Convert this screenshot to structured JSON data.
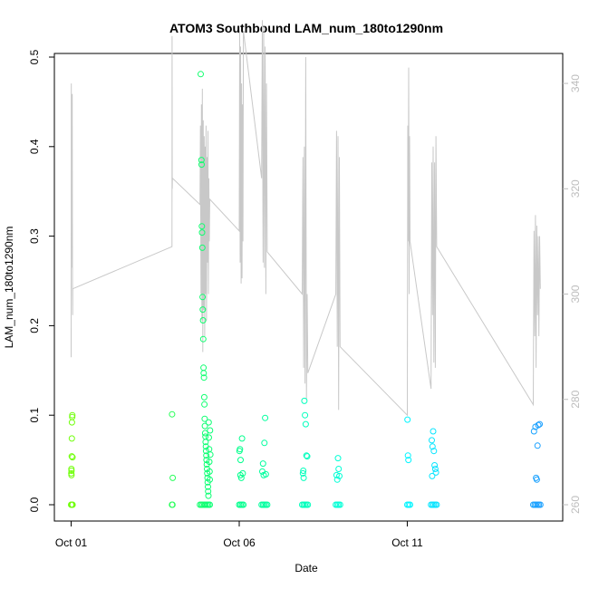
{
  "colors": {
    "background": "#ffffff",
    "axis": "#000000",
    "secondary_line": "#c8c8c8",
    "secondary_axis": "#bdbdbd",
    "point_gradient": [
      "#7fff00",
      "#00ff7f",
      "#00ffff",
      "#1e90ff"
    ]
  },
  "chart_data": {
    "type": "scatter",
    "title": "ATOM3 Southbound LAM_num_180to1290nm",
    "xlabel": "Date",
    "ylabel": "LAM_num_180to1290nm",
    "x_is_date": true,
    "xlim": [
      "2023-09-30T12:00",
      "2023-10-15T15:00"
    ],
    "ylim": [
      0,
      0.5
    ],
    "y_ticks": [
      0.0,
      0.1,
      0.2,
      0.3,
      0.4,
      0.5
    ],
    "y_tick_labels": [
      "0.0",
      "0.1",
      "0.2",
      "0.3",
      "0.4",
      "0.5"
    ],
    "x_ticks": [
      "2023-10-01T00:00",
      "2023-10-06T00:00",
      "2023-10-11T00:00"
    ],
    "x_tick_labels": [
      "Oct 01",
      "Oct 06",
      "Oct 11"
    ],
    "y2lim": [
      260,
      345
    ],
    "y2_ticks": [
      260,
      280,
      300,
      320,
      340
    ],
    "y2_tick_labels": [
      "260",
      "280",
      "300",
      "320",
      "340"
    ],
    "series": [
      {
        "kind": "points",
        "color_by_time": true,
        "points": [
          [
            "2023-10-01T00:00",
            0.0
          ],
          [
            "2023-10-01T00:20",
            0.0
          ],
          [
            "2023-10-01T00:40",
            0.0
          ],
          [
            "2023-10-01T01:00",
            0.0
          ],
          [
            "2023-10-01T00:05",
            0.035
          ],
          [
            "2023-10-01T00:10",
            0.04
          ],
          [
            "2023-10-01T00:15",
            0.038
          ],
          [
            "2023-10-01T00:25",
            0.054
          ],
          [
            "2023-10-01T00:30",
            0.074
          ],
          [
            "2023-10-01T00:35",
            0.092
          ],
          [
            "2023-10-01T00:45",
            0.098
          ],
          [
            "2023-10-01T00:50",
            0.1
          ],
          [
            "2023-10-01T00:12",
            0.033
          ],
          [
            "2023-10-01T00:55",
            0.053
          ],
          [
            "2023-10-04T00:00",
            0.0
          ],
          [
            "2023-10-04T00:20",
            0.0
          ],
          [
            "2023-10-04T00:05",
            0.101
          ],
          [
            "2023-10-04T00:30",
            0.03
          ],
          [
            "2023-10-04T20:00",
            0.0
          ],
          [
            "2023-10-04T21:00",
            0.0
          ],
          [
            "2023-10-04T22:00",
            0.0
          ],
          [
            "2023-10-04T23:00",
            0.0
          ],
          [
            "2023-10-05T00:00",
            0.0
          ],
          [
            "2023-10-05T01:00",
            0.0
          ],
          [
            "2023-10-05T02:00",
            0.0
          ],
          [
            "2023-10-05T03:00",
            0.0
          ],
          [
            "2023-10-04T20:30",
            0.481
          ],
          [
            "2023-10-04T21:00",
            0.385
          ],
          [
            "2023-10-04T21:10",
            0.38
          ],
          [
            "2023-10-04T21:20",
            0.311
          ],
          [
            "2023-10-04T21:30",
            0.304
          ],
          [
            "2023-10-04T21:40",
            0.287
          ],
          [
            "2023-10-04T21:50",
            0.232
          ],
          [
            "2023-10-04T22:00",
            0.218
          ],
          [
            "2023-10-04T22:10",
            0.206
          ],
          [
            "2023-10-04T22:20",
            0.185
          ],
          [
            "2023-10-04T22:30",
            0.153
          ],
          [
            "2023-10-04T22:40",
            0.147
          ],
          [
            "2023-10-04T22:50",
            0.142
          ],
          [
            "2023-10-04T23:00",
            0.12
          ],
          [
            "2023-10-04T23:10",
            0.112
          ],
          [
            "2023-10-04T23:20",
            0.096
          ],
          [
            "2023-10-04T23:30",
            0.088
          ],
          [
            "2023-10-04T23:40",
            0.08
          ],
          [
            "2023-10-04T23:50",
            0.076
          ],
          [
            "2023-10-05T00:00",
            0.07
          ],
          [
            "2023-10-05T00:10",
            0.065
          ],
          [
            "2023-10-05T00:20",
            0.06
          ],
          [
            "2023-10-05T00:30",
            0.055
          ],
          [
            "2023-10-05T00:40",
            0.05
          ],
          [
            "2023-10-05T00:50",
            0.045
          ],
          [
            "2023-10-05T01:00",
            0.04
          ],
          [
            "2023-10-05T01:10",
            0.035
          ],
          [
            "2023-10-05T01:20",
            0.03
          ],
          [
            "2023-10-05T01:30",
            0.025
          ],
          [
            "2023-10-05T01:40",
            0.02
          ],
          [
            "2023-10-05T01:50",
            0.015
          ],
          [
            "2023-10-05T02:00",
            0.01
          ],
          [
            "2023-10-05T02:10",
            0.092
          ],
          [
            "2023-10-05T02:20",
            0.075
          ],
          [
            "2023-10-05T02:30",
            0.062
          ],
          [
            "2023-10-05T02:40",
            0.048
          ],
          [
            "2023-10-05T02:50",
            0.037
          ],
          [
            "2023-10-05T03:00",
            0.028
          ],
          [
            "2023-10-05T03:10",
            0.083
          ],
          [
            "2023-10-05T03:20",
            0.056
          ],
          [
            "2023-10-06T00:00",
            0.0
          ],
          [
            "2023-10-06T01:00",
            0.0
          ],
          [
            "2023-10-06T02:00",
            0.0
          ],
          [
            "2023-10-06T03:00",
            0.0
          ],
          [
            "2023-10-06T00:10",
            0.06
          ],
          [
            "2023-10-06T00:30",
            0.062
          ],
          [
            "2023-10-06T01:00",
            0.05
          ],
          [
            "2023-10-06T02:00",
            0.074
          ],
          [
            "2023-10-06T02:30",
            0.035
          ],
          [
            "2023-10-06T01:30",
            0.03
          ],
          [
            "2023-10-06T00:50",
            0.033
          ],
          [
            "2023-10-06T16:00",
            0.0
          ],
          [
            "2023-10-06T17:00",
            0.0
          ],
          [
            "2023-10-06T18:00",
            0.0
          ],
          [
            "2023-10-06T19:00",
            0.0
          ],
          [
            "2023-10-06T20:00",
            0.0
          ],
          [
            "2023-10-06T16:30",
            0.037
          ],
          [
            "2023-10-06T17:00",
            0.046
          ],
          [
            "2023-10-06T17:30",
            0.033
          ],
          [
            "2023-10-06T18:00",
            0.069
          ],
          [
            "2023-10-06T18:30",
            0.097
          ],
          [
            "2023-10-06T19:00",
            0.034
          ],
          [
            "2023-10-07T21:00",
            0.0
          ],
          [
            "2023-10-07T22:00",
            0.0
          ],
          [
            "2023-10-07T23:00",
            0.0
          ],
          [
            "2023-10-08T00:00",
            0.0
          ],
          [
            "2023-10-08T01:00",
            0.0
          ],
          [
            "2023-10-07T21:30",
            0.035
          ],
          [
            "2023-10-07T22:00",
            0.03
          ],
          [
            "2023-10-07T22:30",
            0.116
          ],
          [
            "2023-10-07T23:00",
            0.1
          ],
          [
            "2023-10-07T23:30",
            0.09
          ],
          [
            "2023-10-08T00:00",
            0.055
          ],
          [
            "2023-10-08T00:30",
            0.054
          ],
          [
            "2023-10-07T21:45",
            0.038
          ],
          [
            "2023-10-08T21:00",
            0.0
          ],
          [
            "2023-10-08T22:00",
            0.0
          ],
          [
            "2023-10-08T23:00",
            0.0
          ],
          [
            "2023-10-09T00:00",
            0.0
          ],
          [
            "2023-10-08T21:30",
            0.033
          ],
          [
            "2023-10-08T22:00",
            0.028
          ],
          [
            "2023-10-08T22:30",
            0.052
          ],
          [
            "2023-10-08T23:00",
            0.04
          ],
          [
            "2023-10-08T23:30",
            0.032
          ],
          [
            "2023-10-11T00:00",
            0.0
          ],
          [
            "2023-10-11T01:00",
            0.0
          ],
          [
            "2023-10-11T02:00",
            0.0
          ],
          [
            "2023-10-11T00:10",
            0.095
          ],
          [
            "2023-10-11T00:30",
            0.055
          ],
          [
            "2023-10-11T00:50",
            0.05
          ],
          [
            "2023-10-11T17:00",
            0.0
          ],
          [
            "2023-10-11T18:00",
            0.0
          ],
          [
            "2023-10-11T19:00",
            0.0
          ],
          [
            "2023-10-11T20:00",
            0.0
          ],
          [
            "2023-10-11T21:00",
            0.0
          ],
          [
            "2023-10-11T17:30",
            0.072
          ],
          [
            "2023-10-11T18:00",
            0.065
          ],
          [
            "2023-10-11T18:30",
            0.082
          ],
          [
            "2023-10-11T19:00",
            0.06
          ],
          [
            "2023-10-11T19:30",
            0.044
          ],
          [
            "2023-10-11T20:00",
            0.04
          ],
          [
            "2023-10-11T20:30",
            0.036
          ],
          [
            "2023-10-11T17:45",
            0.032
          ],
          [
            "2023-10-14T18:00",
            0.0
          ],
          [
            "2023-10-14T19:00",
            0.0
          ],
          [
            "2023-10-14T20:00",
            0.0
          ],
          [
            "2023-10-14T21:00",
            0.0
          ],
          [
            "2023-10-14T22:00",
            0.0
          ],
          [
            "2023-10-14T23:00",
            0.0
          ],
          [
            "2023-10-14T18:30",
            0.082
          ],
          [
            "2023-10-14T19:30",
            0.087
          ],
          [
            "2023-10-14T21:30",
            0.089
          ],
          [
            "2023-10-14T22:30",
            0.09
          ],
          [
            "2023-10-14T21:00",
            0.066
          ],
          [
            "2023-10-14T20:00",
            0.03
          ],
          [
            "2023-10-14T20:30",
            0.028
          ]
        ]
      },
      {
        "kind": "line",
        "axis": "right",
        "points": [
          [
            "2023-10-01T00:00",
            288
          ],
          [
            "2023-10-01T00:05",
            340
          ],
          [
            "2023-10-01T00:15",
            305
          ],
          [
            "2023-10-01T00:25",
            338
          ],
          [
            "2023-10-01T00:35",
            311
          ],
          [
            "2023-10-01T00:45",
            338
          ],
          [
            "2023-10-01T00:55",
            302
          ],
          [
            "2023-10-01T01:05",
            296
          ],
          [
            "2023-10-01T01:10",
            301
          ],
          [
            "2023-10-04T00:00",
            309
          ],
          [
            "2023-10-04T00:05",
            349
          ],
          [
            "2023-10-04T00:10",
            320
          ],
          [
            "2023-10-04T00:15",
            321
          ],
          [
            "2023-10-04T00:20",
            322
          ],
          [
            "2023-10-04T20:00",
            317
          ],
          [
            "2023-10-04T20:20",
            332
          ],
          [
            "2023-10-04T20:40",
            300
          ],
          [
            "2023-10-04T21:00",
            336
          ],
          [
            "2023-10-04T21:20",
            295
          ],
          [
            "2023-10-04T21:40",
            339
          ],
          [
            "2023-10-04T22:00",
            289
          ],
          [
            "2023-10-04T22:20",
            333
          ],
          [
            "2023-10-04T22:40",
            297
          ],
          [
            "2023-10-04T23:00",
            330
          ],
          [
            "2023-10-04T23:20",
            292
          ],
          [
            "2023-10-04T23:40",
            328
          ],
          [
            "2023-10-05T00:00",
            300
          ],
          [
            "2023-10-05T00:20",
            332
          ],
          [
            "2023-10-05T00:40",
            295
          ],
          [
            "2023-10-05T01:00",
            326
          ],
          [
            "2023-10-05T01:20",
            306
          ],
          [
            "2023-10-05T01:40",
            331
          ],
          [
            "2023-10-05T02:00",
            300
          ],
          [
            "2023-10-05T02:20",
            322
          ],
          [
            "2023-10-05T02:40",
            310
          ],
          [
            "2023-10-05T03:00",
            318
          ],
          [
            "2023-10-06T00:00",
            312
          ],
          [
            "2023-10-06T00:20",
            350
          ],
          [
            "2023-10-06T00:40",
            306
          ],
          [
            "2023-10-06T01:00",
            347
          ],
          [
            "2023-10-06T01:20",
            302
          ],
          [
            "2023-10-06T01:40",
            340
          ],
          [
            "2023-10-06T02:00",
            303
          ],
          [
            "2023-10-06T02:20",
            336
          ],
          [
            "2023-10-06T02:40",
            310
          ],
          [
            "2023-10-06T03:00",
            350
          ],
          [
            "2023-10-06T16:00",
            322
          ],
          [
            "2023-10-06T16:30",
            352
          ],
          [
            "2023-10-06T17:00",
            306
          ],
          [
            "2023-10-06T17:30",
            351
          ],
          [
            "2023-10-06T18:00",
            305
          ],
          [
            "2023-10-06T18:30",
            347
          ],
          [
            "2023-10-06T19:00",
            300
          ],
          [
            "2023-10-06T19:30",
            340
          ],
          [
            "2023-10-06T20:00",
            308
          ],
          [
            "2023-10-07T21:00",
            300
          ],
          [
            "2023-10-07T21:30",
            326
          ],
          [
            "2023-10-07T22:00",
            286
          ],
          [
            "2023-10-07T22:30",
            328
          ],
          [
            "2023-10-07T23:00",
            283
          ],
          [
            "2023-10-07T23:30",
            345
          ],
          [
            "2023-10-08T00:00",
            280
          ],
          [
            "2023-10-08T00:30",
            300
          ],
          [
            "2023-10-08T01:00",
            285
          ],
          [
            "2023-10-08T21:00",
            300
          ],
          [
            "2023-10-08T21:30",
            331
          ],
          [
            "2023-10-08T22:00",
            290
          ],
          [
            "2023-10-08T22:30",
            330
          ],
          [
            "2023-10-08T23:00",
            278
          ],
          [
            "2023-10-08T23:30",
            326
          ],
          [
            "2023-10-09T00:00",
            290
          ],
          [
            "2023-10-11T00:00",
            277
          ],
          [
            "2023-10-11T00:20",
            332
          ],
          [
            "2023-10-11T00:40",
            310
          ],
          [
            "2023-10-11T01:00",
            343
          ],
          [
            "2023-10-11T01:20",
            300
          ],
          [
            "2023-10-11T01:40",
            330
          ],
          [
            "2023-10-11T02:00",
            310
          ],
          [
            "2023-10-11T17:00",
            282
          ],
          [
            "2023-10-11T17:30",
            325
          ],
          [
            "2023-10-11T18:00",
            296
          ],
          [
            "2023-10-11T18:30",
            328
          ],
          [
            "2023-10-11T19:00",
            287
          ],
          [
            "2023-10-11T19:30",
            325
          ],
          [
            "2023-10-11T20:00",
            286
          ],
          [
            "2023-10-11T20:30",
            330
          ],
          [
            "2023-10-11T21:00",
            309
          ],
          [
            "2023-10-14T18:00",
            279
          ],
          [
            "2023-10-14T18:30",
            312
          ],
          [
            "2023-10-14T19:00",
            292
          ],
          [
            "2023-10-14T19:30",
            315
          ],
          [
            "2023-10-14T20:00",
            286
          ],
          [
            "2023-10-14T20:30",
            313
          ],
          [
            "2023-10-14T21:00",
            296
          ],
          [
            "2023-10-14T21:30",
            311
          ],
          [
            "2023-10-14T22:00",
            292
          ],
          [
            "2023-10-14T22:30",
            311
          ],
          [
            "2023-10-14T23:00",
            301
          ]
        ]
      }
    ]
  }
}
